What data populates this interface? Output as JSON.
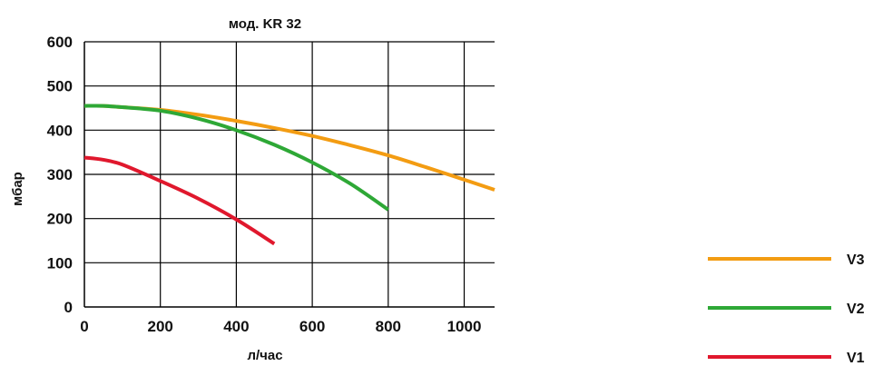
{
  "chart_data": {
    "type": "line",
    "title": "мод. KR 32",
    "xlabel": "л/час",
    "ylabel": "мбар",
    "xlim": [
      0,
      1080
    ],
    "ylim": [
      0,
      600
    ],
    "x_ticks": [
      0,
      200,
      400,
      600,
      800,
      1000
    ],
    "y_ticks": [
      0,
      100,
      200,
      300,
      400,
      500,
      600
    ],
    "x_tick_labels": [
      "0",
      "200",
      "400",
      "600",
      "800",
      "1000"
    ],
    "y_tick_labels": [
      "0",
      "100",
      "200",
      "300",
      "400",
      "500",
      "600"
    ],
    "grid": true,
    "legend_position": "bottom-right",
    "series": [
      {
        "name": "V3",
        "color": "#f39c12",
        "x": [
          0,
          50,
          100,
          200,
          300,
          400,
          500,
          600,
          700,
          800,
          900,
          1000,
          1080
        ],
        "y": [
          455,
          455,
          452,
          446,
          435,
          421,
          405,
          387,
          366,
          343,
          316,
          288,
          265
        ]
      },
      {
        "name": "V2",
        "color": "#2ea836",
        "x": [
          0,
          50,
          100,
          200,
          300,
          400,
          500,
          600,
          700,
          800
        ],
        "y": [
          455,
          455,
          452,
          444,
          426,
          400,
          367,
          327,
          279,
          220
        ]
      },
      {
        "name": "V1",
        "color": "#e0182d",
        "x": [
          0,
          50,
          100,
          200,
          300,
          400,
          500
        ],
        "y": [
          338,
          333,
          322,
          285,
          245,
          198,
          143
        ]
      }
    ]
  }
}
